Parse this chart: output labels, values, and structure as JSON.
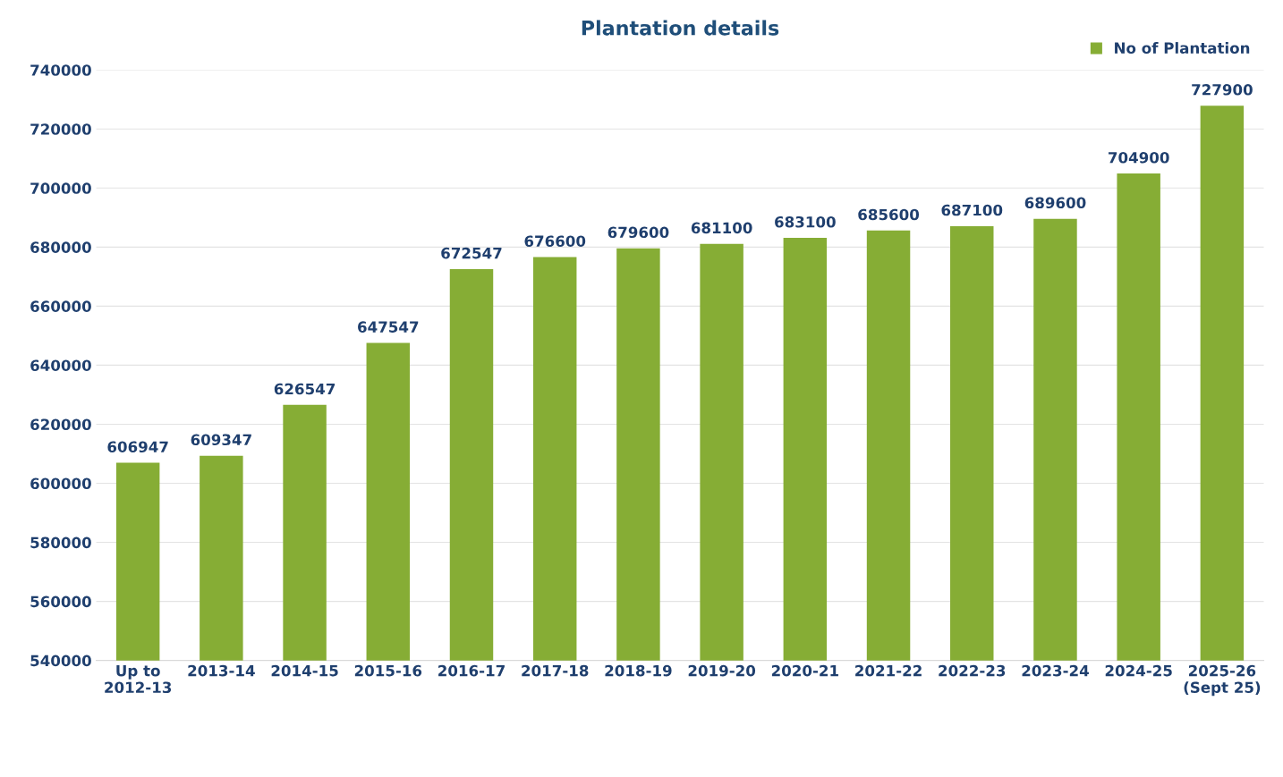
{
  "chart_data": {
    "type": "bar",
    "title": "Plantation details",
    "categories": [
      "Up to\n2012-13",
      "2013-14",
      "2014-15",
      "2015-16",
      "2016-17",
      "2017-18",
      "2018-19",
      "2019-20",
      "2020-21",
      "2021-22",
      "2022-23",
      "2023-24",
      "2024-25",
      "2025-26\n(Sept 25)"
    ],
    "series": [
      {
        "name": "No of Plantation",
        "color": "#86ad35",
        "values": [
          606947,
          609347,
          626547,
          647547,
          672547,
          676600,
          679600,
          681100,
          683100,
          685600,
          687100,
          689600,
          704900,
          727900
        ]
      }
    ],
    "ylim": [
      540000,
      740000
    ],
    "yticks": [
      540000,
      560000,
      580000,
      600000,
      620000,
      640000,
      660000,
      680000,
      700000,
      720000,
      740000
    ],
    "grid": "y",
    "legend": "top right",
    "data_labels": true
  }
}
